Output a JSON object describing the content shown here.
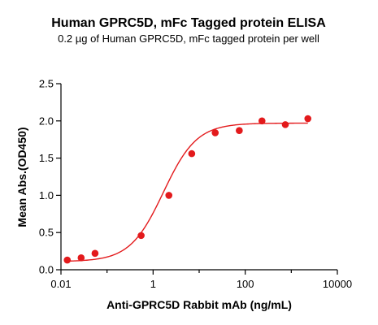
{
  "chart_data": {
    "type": "scatter",
    "title": "Human GPRC5D, mFc Tagged protein ELISA",
    "subtitle": "0.2 µg of Human GPRC5D, mFc tagged protein per well",
    "xlabel": "Anti-GPRC5D Rabbit mAb (ng/mL)",
    "ylabel": "Mean Abs.(OD450)",
    "xscale": "log",
    "xlim": [
      0.01,
      10000
    ],
    "ylim": [
      0,
      2.5
    ],
    "xticks": [
      0.01,
      1,
      100,
      10000
    ],
    "xtick_labels": [
      "0.01",
      "1",
      "100",
      "10000"
    ],
    "yticks": [
      0.0,
      0.5,
      1.0,
      1.5,
      2.0,
      2.5
    ],
    "ytick_labels": [
      "0.0",
      "0.5",
      "1.0",
      "1.5",
      "2.0",
      "2.5"
    ],
    "grid": false,
    "legend": false,
    "color": "#e31a1c",
    "series": [
      {
        "x": [
          0.0137,
          0.0274,
          0.0549,
          0.55,
          2.2,
          6.9,
          22.3,
          74.3,
          231,
          742,
          2290
        ],
        "y": [
          0.13,
          0.16,
          0.22,
          0.46,
          1.0,
          1.56,
          1.84,
          1.87,
          2.0,
          1.95,
          2.03
        ]
      }
    ],
    "fit_curve": {
      "model": "4PL",
      "bottom": 0.11,
      "top": 1.97,
      "ec50": 1.67,
      "hill": 1.2
    }
  }
}
